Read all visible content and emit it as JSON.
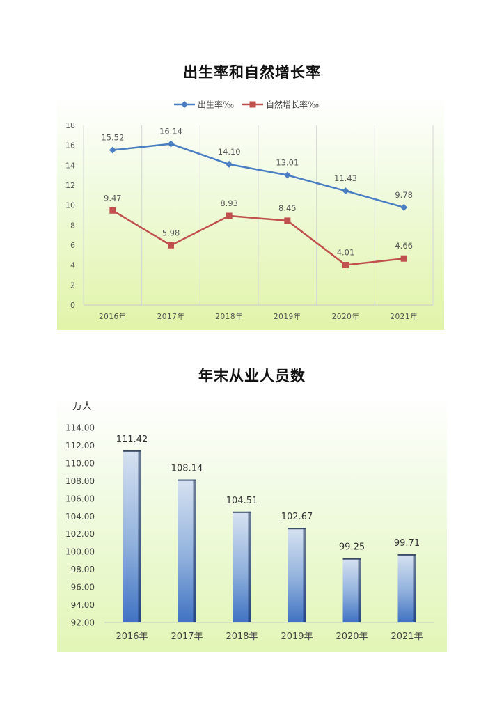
{
  "chart_data": [
    {
      "type": "line",
      "title": "出生率和自然增长率",
      "categories": [
        "2016年",
        "2017年",
        "2018年",
        "2019年",
        "2020年",
        "2021年"
      ],
      "series": [
        {
          "name": "出生率‰",
          "values": [
            15.52,
            16.14,
            14.1,
            13.01,
            11.43,
            9.78
          ],
          "labels": [
            "15.52",
            "16.14",
            "14.10",
            "13.01",
            "11.43",
            "9.78"
          ],
          "color": "#4a7ec2",
          "marker": "diamond"
        },
        {
          "name": "自然增长率‰",
          "values": [
            9.47,
            5.98,
            8.93,
            8.45,
            4.01,
            4.66
          ],
          "labels": [
            "9.47",
            "5.98",
            "8.93",
            "8.45",
            "4.01",
            "4.66"
          ],
          "color": "#c0504d",
          "marker": "square"
        }
      ],
      "yticks": [
        "0",
        "2",
        "4",
        "6",
        "8",
        "10",
        "12",
        "14",
        "16",
        "18"
      ],
      "ylim": [
        0,
        18
      ],
      "grid": "vertical",
      "legend": "top-center"
    },
    {
      "type": "bar",
      "title": "年末从业人员数",
      "ylabel": "万人",
      "categories": [
        "2016年",
        "2017年",
        "2018年",
        "2019年",
        "2020年",
        "2021年"
      ],
      "values": [
        111.42,
        108.14,
        104.51,
        102.67,
        99.25,
        99.71
      ],
      "labels": [
        "111.42",
        "108.14",
        "104.51",
        "102.67",
        "99.25",
        "99.71"
      ],
      "yticks": [
        "92.00",
        "94.00",
        "96.00",
        "98.00",
        "100.00",
        "102.00",
        "104.00",
        "106.00",
        "108.00",
        "110.00",
        "112.00",
        "114.00"
      ],
      "ylim": [
        92,
        114
      ],
      "color": "#4f81bd"
    }
  ]
}
